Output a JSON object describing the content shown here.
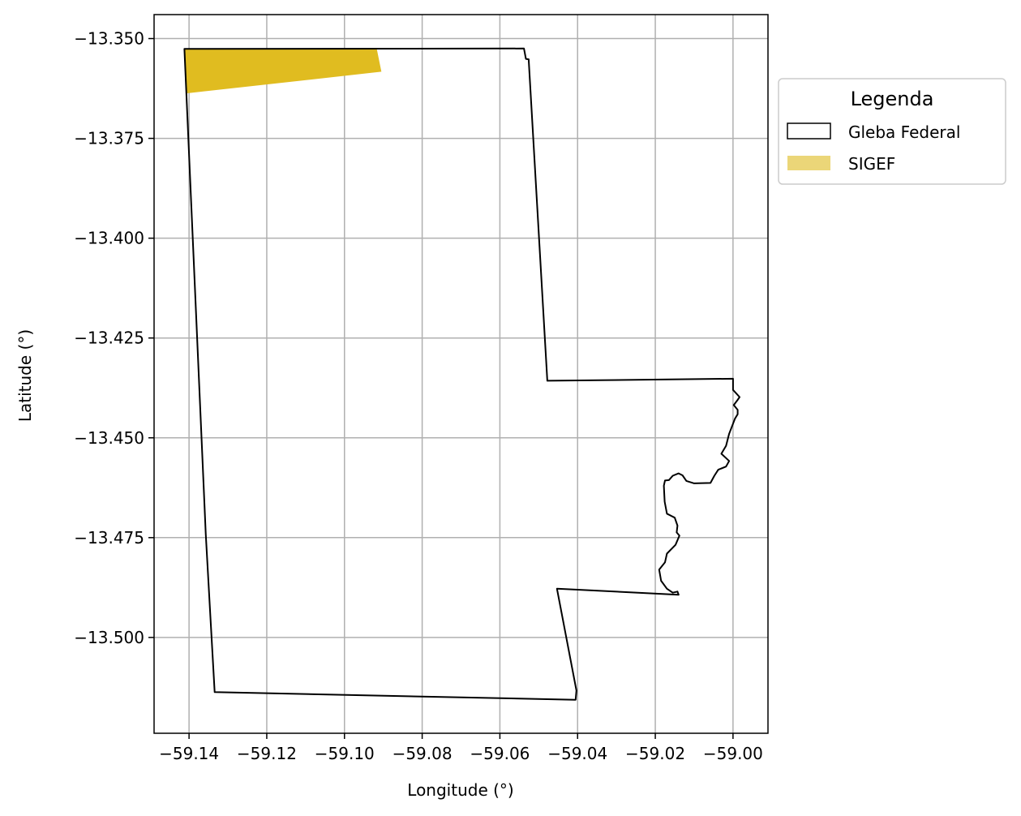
{
  "chart_data": {
    "type": "map",
    "xlabel": "Longitude (°)",
    "ylabel": "Latitude (°)",
    "xlim": [
      -59.149,
      -58.991
    ],
    "ylim": [
      -13.524,
      -13.344
    ],
    "grid": true,
    "x_ticks": [
      -59.14,
      -59.12,
      -59.1,
      -59.08,
      -59.06,
      -59.04,
      -59.02,
      -59.0
    ],
    "x_tick_labels": [
      "−59.14",
      "−59.12",
      "−59.10",
      "−59.08",
      "−59.06",
      "−59.04",
      "−59.02",
      "−59.00"
    ],
    "y_ticks": [
      -13.35,
      -13.375,
      -13.4,
      -13.425,
      -13.45,
      -13.475,
      -13.5
    ],
    "y_tick_labels": [
      "−13.350",
      "−13.375",
      "−13.400",
      "−13.425",
      "−13.450",
      "−13.475",
      "−13.500"
    ],
    "legend": {
      "title": "Legenda",
      "placement": "outside-right-top",
      "entries": [
        {
          "label": "Gleba Federal",
          "style": "outline"
        },
        {
          "label": "SIGEF",
          "style": "fill"
        }
      ]
    },
    "layers": [
      {
        "name": "Gleba Federal",
        "stroke": "#000000",
        "fill": "none",
        "coordinates": [
          [
            -59.1412,
            -13.3526
          ],
          [
            -59.0538,
            -13.3525
          ],
          [
            -59.0533,
            -13.3551
          ],
          [
            -59.0526,
            -13.3552
          ],
          [
            -59.0478,
            -13.4357
          ],
          [
            -59.0,
            -13.4352
          ],
          [
            -59.0,
            -13.438
          ],
          [
            -58.9983,
            -13.4398
          ],
          [
            -58.9988,
            -13.4405
          ],
          [
            -58.9998,
            -13.4418
          ],
          [
            -58.9988,
            -13.443
          ],
          [
            -58.9988,
            -13.4441
          ],
          [
            -58.9995,
            -13.4452
          ],
          [
            -59.001,
            -13.449
          ],
          [
            -59.0018,
            -13.452
          ],
          [
            -59.003,
            -13.454
          ],
          [
            -59.001,
            -13.4558
          ],
          [
            -59.0018,
            -13.4572
          ],
          [
            -59.0038,
            -13.458
          ],
          [
            -59.0048,
            -13.4595
          ],
          [
            -59.0058,
            -13.4613
          ],
          [
            -59.01,
            -13.4614
          ],
          [
            -59.012,
            -13.4608
          ],
          [
            -59.013,
            -13.4594
          ],
          [
            -59.014,
            -13.4589
          ],
          [
            -59.0155,
            -13.4595
          ],
          [
            -59.0165,
            -13.4606
          ],
          [
            -59.0175,
            -13.4607
          ],
          [
            -59.0178,
            -13.462
          ],
          [
            -59.0176,
            -13.466
          ],
          [
            -59.017,
            -13.469
          ],
          [
            -59.015,
            -13.47
          ],
          [
            -59.0143,
            -13.472
          ],
          [
            -59.0145,
            -13.4737
          ],
          [
            -59.0138,
            -13.4745
          ],
          [
            -59.0148,
            -13.4768
          ],
          [
            -59.0158,
            -13.4778
          ],
          [
            -59.017,
            -13.479
          ],
          [
            -59.0175,
            -13.4812
          ],
          [
            -59.019,
            -13.483
          ],
          [
            -59.0185,
            -13.4858
          ],
          [
            -59.017,
            -13.4878
          ],
          [
            -59.0155,
            -13.4888
          ],
          [
            -59.0143,
            -13.4885
          ],
          [
            -59.014,
            -13.4893
          ],
          [
            -59.0453,
            -13.4878
          ],
          [
            -59.0403,
            -13.5133
          ],
          [
            -59.0405,
            -13.5156
          ],
          [
            -59.1334,
            -13.5137
          ],
          [
            -59.1345,
            -13.495
          ],
          [
            -59.1357,
            -13.474
          ],
          [
            -59.1412,
            -13.3526
          ]
        ]
      },
      {
        "name": "SIGEF",
        "fill": "#e0bc20",
        "stroke": "none",
        "coordinates": [
          [
            -59.1412,
            -13.3526
          ],
          [
            -59.0917,
            -13.3525
          ],
          [
            -59.0905,
            -13.3583
          ],
          [
            -59.1405,
            -13.3637
          ]
        ]
      }
    ]
  }
}
